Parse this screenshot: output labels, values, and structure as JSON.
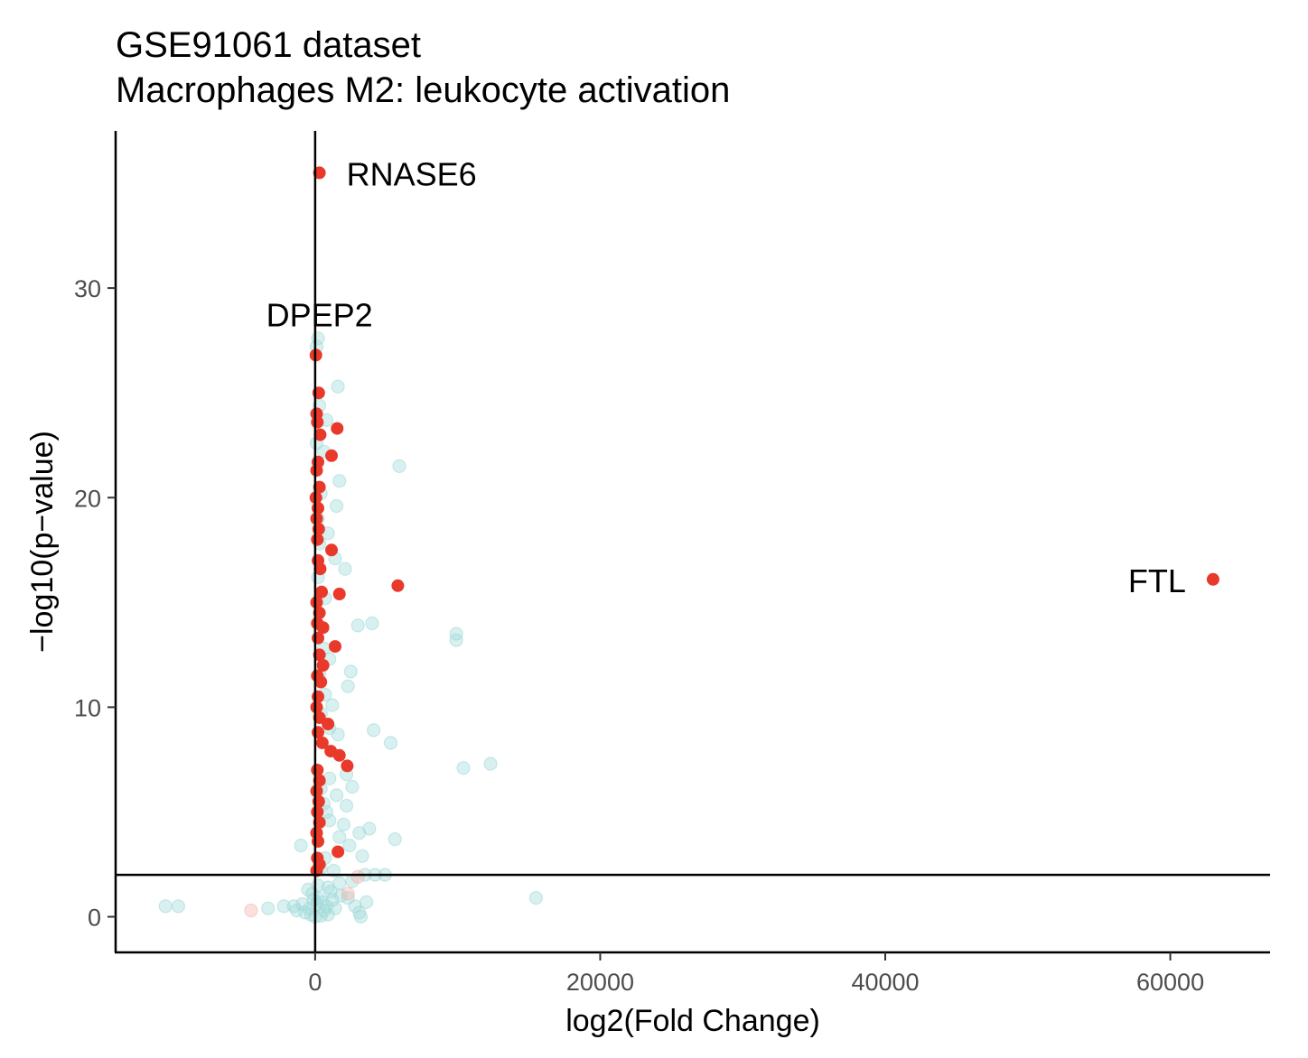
{
  "chart_data": {
    "type": "scatter",
    "title": "GSE91061 dataset",
    "subtitle": "Macrophages M2: leukocyte activation",
    "xlabel": "log2(Fold Change)",
    "ylabel": "−log10(p−value)",
    "xlim": [
      -14000,
      67000
    ],
    "ylim": [
      -1.7,
      37.5
    ],
    "x_ticks": [
      0,
      20000,
      40000,
      60000
    ],
    "x_tick_labels": [
      "0",
      "20000",
      "40000",
      "60000"
    ],
    "y_ticks": [
      0,
      10,
      20,
      30
    ],
    "y_tick_labels": [
      "0",
      "10",
      "20",
      "30"
    ],
    "grid": false,
    "reference_lines": {
      "vertical_x": 0,
      "horizontal_y": 2
    },
    "colors": {
      "highlighted": "#e8392a",
      "background": "#9fd9d9",
      "background_down": "#f4b3ad",
      "reference_line": "#000000"
    },
    "labeled_points": [
      {
        "label": "RNASE6",
        "x": 300,
        "y": 35.5
      },
      {
        "label": "DPEP2",
        "x": 50,
        "y": 26.8
      },
      {
        "label": "FTL",
        "x": 63000,
        "y": 16.1
      }
    ],
    "series": [
      {
        "role": "highlighted",
        "points": [
          [
            300,
            35.5
          ],
          [
            63000,
            16.1
          ],
          [
            50,
            26.8
          ],
          [
            250,
            25.0
          ],
          [
            100,
            24.0
          ],
          [
            150,
            23.6
          ],
          [
            1550,
            23.3
          ],
          [
            350,
            23.0
          ],
          [
            1150,
            22.0
          ],
          [
            200,
            21.7
          ],
          [
            100,
            21.3
          ],
          [
            300,
            20.5
          ],
          [
            50,
            20.0
          ],
          [
            200,
            19.5
          ],
          [
            100,
            19.0
          ],
          [
            250,
            18.5
          ],
          [
            150,
            18.0
          ],
          [
            1150,
            17.5
          ],
          [
            200,
            17.0
          ],
          [
            350,
            16.6
          ],
          [
            5800,
            15.8
          ],
          [
            1700,
            15.4
          ],
          [
            450,
            15.5
          ],
          [
            100,
            15.0
          ],
          [
            300,
            14.5
          ],
          [
            150,
            14.0
          ],
          [
            550,
            13.8
          ],
          [
            200,
            13.3
          ],
          [
            1400,
            12.9
          ],
          [
            300,
            12.5
          ],
          [
            550,
            12.0
          ],
          [
            150,
            11.5
          ],
          [
            400,
            11.2
          ],
          [
            200,
            10.5
          ],
          [
            100,
            10.0
          ],
          [
            300,
            9.5
          ],
          [
            900,
            9.2
          ],
          [
            200,
            8.8
          ],
          [
            500,
            8.3
          ],
          [
            1100,
            7.9
          ],
          [
            1700,
            7.7
          ],
          [
            2250,
            7.2
          ],
          [
            150,
            7.0
          ],
          [
            300,
            6.5
          ],
          [
            100,
            6.0
          ],
          [
            250,
            5.5
          ],
          [
            150,
            5.0
          ],
          [
            300,
            4.5
          ],
          [
            100,
            4.0
          ],
          [
            200,
            3.6
          ],
          [
            1600,
            3.1
          ],
          [
            150,
            2.8
          ],
          [
            300,
            2.5
          ],
          [
            100,
            2.2
          ]
        ]
      },
      {
        "role": "background",
        "points": [
          [
            200,
            27.6
          ],
          [
            100,
            27.2
          ],
          [
            1600,
            25.3
          ],
          [
            300,
            24.4
          ],
          [
            800,
            23.7
          ],
          [
            100,
            22.6
          ],
          [
            600,
            22.2
          ],
          [
            5900,
            21.5
          ],
          [
            1700,
            20.8
          ],
          [
            400,
            20.2
          ],
          [
            1500,
            19.6
          ],
          [
            200,
            19.0
          ],
          [
            900,
            18.3
          ],
          [
            300,
            17.8
          ],
          [
            1400,
            17.1
          ],
          [
            2100,
            16.6
          ],
          [
            200,
            16.2
          ],
          [
            700,
            15.2
          ],
          [
            3000,
            13.9
          ],
          [
            4000,
            14.0
          ],
          [
            9900,
            13.5
          ],
          [
            9900,
            13.2
          ],
          [
            600,
            12.8
          ],
          [
            1000,
            12.3
          ],
          [
            2500,
            11.7
          ],
          [
            300,
            11.6
          ],
          [
            2300,
            11.0
          ],
          [
            700,
            10.6
          ],
          [
            1200,
            10.1
          ],
          [
            400,
            9.7
          ],
          [
            1000,
            9.0
          ],
          [
            4100,
            8.9
          ],
          [
            1600,
            8.7
          ],
          [
            5300,
            8.3
          ],
          [
            12300,
            7.3
          ],
          [
            10400,
            7.1
          ],
          [
            2200,
            6.8
          ],
          [
            1000,
            6.6
          ],
          [
            2600,
            6.2
          ],
          [
            400,
            6.1
          ],
          [
            1500,
            5.8
          ],
          [
            600,
            5.4
          ],
          [
            2200,
            5.3
          ],
          [
            800,
            5.0
          ],
          [
            1000,
            4.6
          ],
          [
            2000,
            4.4
          ],
          [
            3800,
            4.2
          ],
          [
            3100,
            4.0
          ],
          [
            1700,
            3.8
          ],
          [
            5600,
            3.7
          ],
          [
            -1000,
            3.4
          ],
          [
            2400,
            3.4
          ],
          [
            3300,
            2.9
          ],
          [
            700,
            2.8
          ],
          [
            400,
            2.3
          ],
          [
            1300,
            2.2
          ],
          [
            3500,
            2.0
          ],
          [
            4200,
            2.0
          ],
          [
            4900,
            2.0
          ],
          [
            2600,
            1.7
          ],
          [
            1700,
            1.6
          ],
          [
            900,
            1.4
          ],
          [
            200,
            1.5
          ],
          [
            -500,
            1.3
          ],
          [
            -200,
            1.1
          ],
          [
            1100,
            1.2
          ],
          [
            1800,
            1.0
          ],
          [
            2300,
            0.9
          ],
          [
            15500,
            0.9
          ],
          [
            3600,
            0.7
          ],
          [
            2800,
            0.5
          ],
          [
            -900,
            0.6
          ],
          [
            -1500,
            0.5
          ],
          [
            -2200,
            0.5
          ],
          [
            -3300,
            0.4
          ],
          [
            -9600,
            0.5
          ],
          [
            -10500,
            0.5
          ],
          [
            -1300,
            0.3
          ],
          [
            -700,
            0.2
          ],
          [
            -300,
            0.1
          ],
          [
            0,
            0.0
          ],
          [
            400,
            0.05
          ],
          [
            900,
            0.1
          ],
          [
            1400,
            0.4
          ],
          [
            3100,
            0.2
          ],
          [
            3200,
            0.0
          ],
          [
            500,
            0.7
          ],
          [
            -100,
            0.8
          ],
          [
            100,
            0.6
          ],
          [
            600,
            0.3
          ],
          [
            200,
            0.9
          ],
          [
            -400,
            0.4
          ],
          [
            800,
            0.5
          ],
          [
            1200,
            0.8
          ]
        ]
      },
      {
        "role": "background_down",
        "points": [
          [
            -4500,
            0.3
          ],
          [
            3000,
            1.9
          ],
          [
            2300,
            1.1
          ]
        ]
      }
    ]
  }
}
